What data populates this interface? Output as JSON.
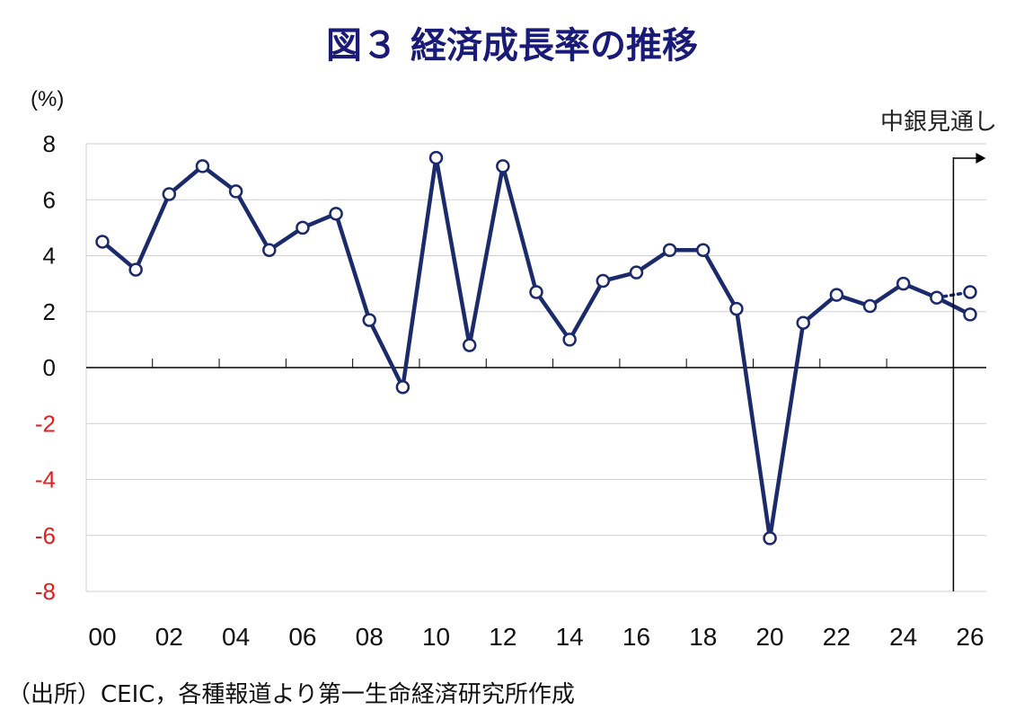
{
  "title": "図３ 経済成長率の推移",
  "source": "（出所）CEIC，各種報道より第一生命経済研究所作成",
  "colors": {
    "title": "#1a1a78",
    "line": "#1b2a6b",
    "marker_fill": "#ffffff",
    "grid": "#d0d0d0",
    "axis": "#000000",
    "negative_tick": "#e02020"
  },
  "chart_data": {
    "type": "line",
    "title": "図３ 経済成長率の推移",
    "ylabel": "(%)",
    "xlabel": "",
    "ylim": [
      -8,
      8
    ],
    "yticks": [
      "8",
      "6",
      "4",
      "2",
      "0",
      "-2",
      "-4",
      "-6",
      "-8"
    ],
    "xticks": [
      "00",
      "02",
      "04",
      "06",
      "08",
      "10",
      "12",
      "14",
      "16",
      "18",
      "20",
      "22",
      "24",
      "26"
    ],
    "grid": true,
    "annotation": "中銀見通し",
    "x": [
      2000,
      2001,
      2002,
      2003,
      2004,
      2005,
      2006,
      2007,
      2008,
      2009,
      2010,
      2011,
      2012,
      2013,
      2014,
      2015,
      2016,
      2017,
      2018,
      2019,
      2020,
      2021,
      2022,
      2023,
      2024,
      2025,
      2026
    ],
    "series": [
      {
        "values": [
          4.5,
          3.5,
          6.2,
          7.2,
          6.3,
          4.2,
          5.0,
          5.5,
          1.7,
          -0.7,
          7.5,
          0.8,
          7.2,
          2.7,
          1.0,
          3.1,
          3.4,
          4.2,
          4.2,
          2.1,
          -6.1,
          1.6,
          2.6,
          2.2,
          3.0,
          2.5,
          1.9
        ]
      }
    ],
    "forecast": {
      "x": [
        2025,
        2026
      ],
      "values": [
        2.5,
        2.7
      ]
    }
  }
}
